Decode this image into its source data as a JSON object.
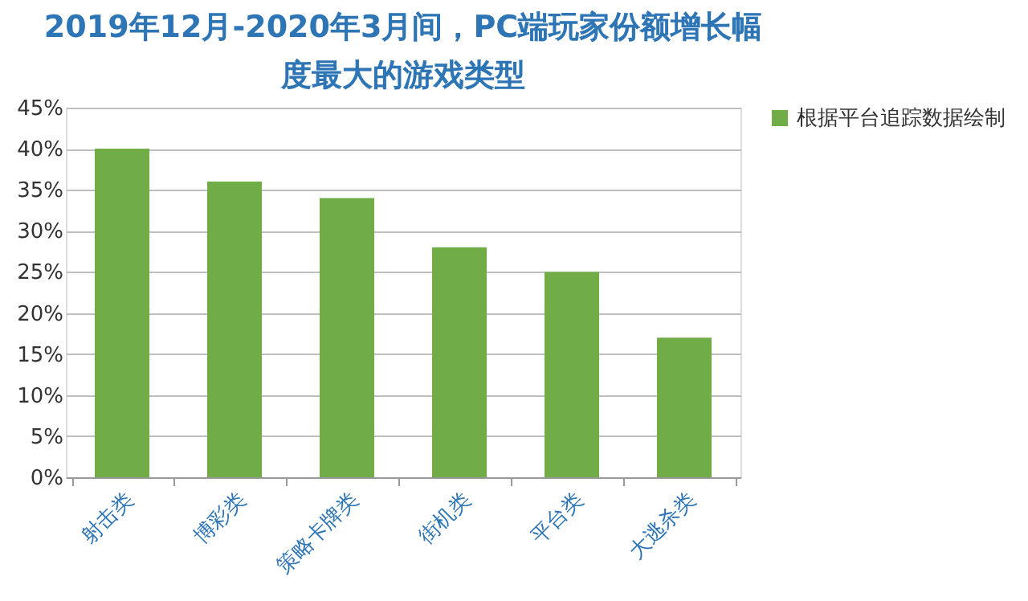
{
  "chart_data": {
    "type": "bar",
    "title": "2019年12月-2020年3月间，PC端玩家份额增长幅度最大的游戏类型",
    "categories": [
      "射击类",
      "博彩类",
      "策略卡牌类",
      "街机类",
      "平台类",
      "大逃杀类"
    ],
    "series": [
      {
        "name": "根据平台追踪数据绘制",
        "color": "#70ad47",
        "values": [
          40,
          36,
          34,
          28,
          25,
          17
        ]
      }
    ],
    "ylim": [
      0,
      45
    ],
    "yticks": [
      {
        "value": 0,
        "label": "0%"
      },
      {
        "value": 5,
        "label": "5%"
      },
      {
        "value": 10,
        "label": "10%"
      },
      {
        "value": 15,
        "label": "15%"
      },
      {
        "value": 20,
        "label": "20%"
      },
      {
        "value": 25,
        "label": "25%"
      },
      {
        "value": 30,
        "label": "30%"
      },
      {
        "value": 35,
        "label": "35%"
      },
      {
        "value": 40,
        "label": "40%"
      },
      {
        "value": 45,
        "label": "45%"
      }
    ],
    "grid": "y",
    "legend": "right"
  }
}
